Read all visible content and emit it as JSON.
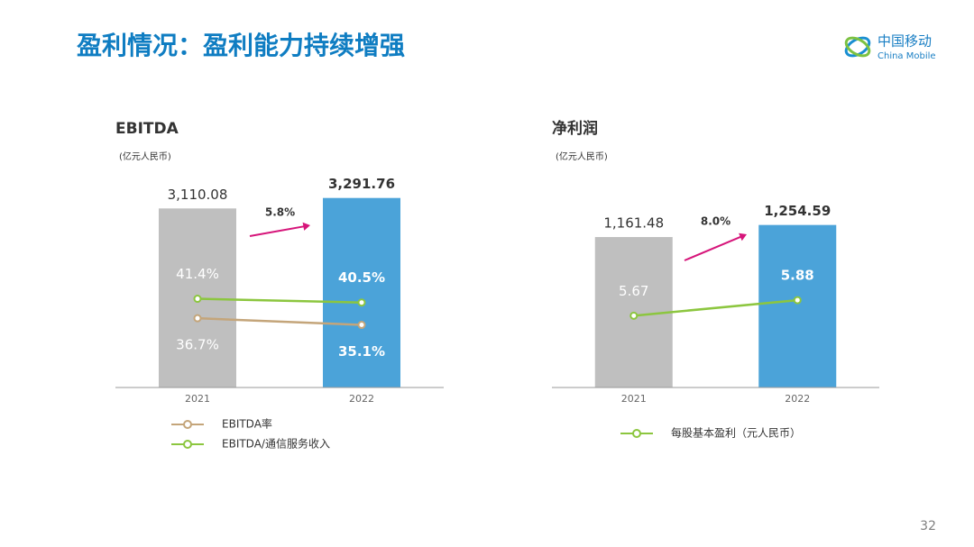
{
  "header": {
    "title": "盈利情况：盈利能力持续增强",
    "logo_cn": "中国移动",
    "logo_en": "China Mobile"
  },
  "page_number": "32",
  "chart_data": [
    {
      "type": "bar",
      "title": "EBITDA",
      "unit": "(亿元人民币)",
      "categories": [
        "2021",
        "2022"
      ],
      "values": [
        3110.08,
        3291.76
      ],
      "value_labels": [
        "3,110.08",
        "3,291.76"
      ],
      "colors": [
        "#bfbfbf",
        "#4ba3d9"
      ],
      "ylim": [
        0,
        3600
      ],
      "annotation": "5.8%",
      "annotation_color": "#d6157a",
      "y2lim": [
        20,
        70
      ],
      "series": [
        {
          "name": "EBITDA率",
          "color": "#c4a57a",
          "values": [
            36.7,
            35.1
          ],
          "value_labels": [
            "36.7%",
            "35.1%"
          ],
          "axis": "y2"
        },
        {
          "name": "EBITDA/通信服务收入",
          "color": "#8cc63f",
          "values": [
            41.4,
            40.5
          ],
          "value_labels": [
            "41.4%",
            "40.5%"
          ],
          "axis": "y2"
        }
      ]
    },
    {
      "type": "bar",
      "title": "净利润",
      "unit": "(亿元人民币)",
      "categories": [
        "2021",
        "2022"
      ],
      "values": [
        1161.48,
        1254.59
      ],
      "value_labels": [
        "1,161.48",
        "1,254.59"
      ],
      "colors": [
        "#bfbfbf",
        "#4ba3d9"
      ],
      "ylim": [
        0,
        1600
      ],
      "annotation": "8.0%",
      "annotation_color": "#d6157a",
      "y2lim": [
        4.7,
        7.5
      ],
      "series": [
        {
          "name": "每股基本盈利（元人民币）",
          "color": "#8cc63f",
          "values": [
            5.67,
            5.88
          ],
          "axis": "y2"
        }
      ]
    }
  ]
}
